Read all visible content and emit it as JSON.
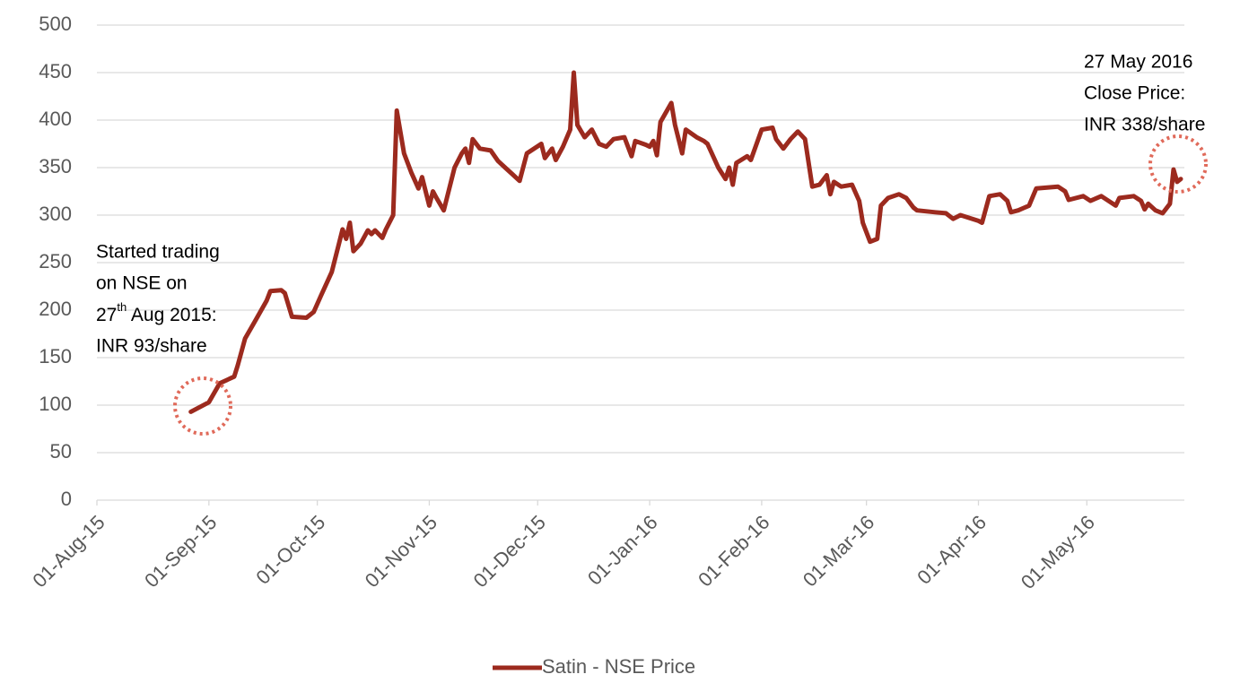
{
  "chart_data": {
    "type": "line",
    "x": [
      "2015-08-27",
      "2015-09-01",
      "2015-09-04",
      "2015-09-08",
      "2015-09-09",
      "2015-09-11",
      "2015-09-14",
      "2015-09-17",
      "2015-09-18",
      "2015-09-21",
      "2015-09-22",
      "2015-09-24",
      "2015-09-28",
      "2015-09-30",
      "2015-10-02",
      "2015-10-05",
      "2015-10-07",
      "2015-10-08",
      "2015-10-09",
      "2015-10-10",
      "2015-10-11",
      "2015-10-13",
      "2015-10-15",
      "2015-10-16",
      "2015-10-17",
      "2015-10-19",
      "2015-10-20",
      "2015-10-22",
      "2015-10-23",
      "2015-10-25",
      "2015-10-27",
      "2015-10-29",
      "2015-10-30",
      "2015-11-01",
      "2015-11-02",
      "2015-11-03",
      "2015-11-05",
      "2015-11-08",
      "2015-11-10",
      "2015-11-11",
      "2015-11-12",
      "2015-11-13",
      "2015-11-15",
      "2015-11-18",
      "2015-11-20",
      "2015-11-22",
      "2015-11-24",
      "2015-11-26",
      "2015-11-28",
      "2015-12-02",
      "2015-12-03",
      "2015-12-05",
      "2015-12-06",
      "2015-12-08",
      "2015-12-10",
      "2015-12-11",
      "2015-12-12",
      "2015-12-14",
      "2015-12-16",
      "2015-12-18",
      "2015-12-20",
      "2015-12-22",
      "2015-12-25",
      "2015-12-27",
      "2015-12-28",
      "2015-12-31",
      "2016-01-01",
      "2016-01-02",
      "2016-01-03",
      "2016-01-04",
      "2016-01-07",
      "2016-01-08",
      "2016-01-10",
      "2016-01-11",
      "2016-01-14",
      "2016-01-16",
      "2016-01-17",
      "2016-01-20",
      "2016-01-22",
      "2016-01-23",
      "2016-01-24",
      "2016-01-25",
      "2016-01-28",
      "2016-01-29",
      "2016-02-01",
      "2016-02-04",
      "2016-02-05",
      "2016-02-07",
      "2016-02-09",
      "2016-02-11",
      "2016-02-13",
      "2016-02-15",
      "2016-02-17",
      "2016-02-19",
      "2016-02-20",
      "2016-02-21",
      "2016-02-23",
      "2016-02-26",
      "2016-02-28",
      "2016-02-29",
      "2016-03-02",
      "2016-03-04",
      "2016-03-05",
      "2016-03-07",
      "2016-03-10",
      "2016-03-12",
      "2016-03-14",
      "2016-03-15",
      "2016-03-20",
      "2016-03-23",
      "2016-03-25",
      "2016-03-27",
      "2016-04-01",
      "2016-04-02",
      "2016-04-04",
      "2016-04-07",
      "2016-04-09",
      "2016-04-10",
      "2016-04-12",
      "2016-04-15",
      "2016-04-17",
      "2016-04-23",
      "2016-04-25",
      "2016-04-26",
      "2016-04-30",
      "2016-05-02",
      "2016-05-05",
      "2016-05-07",
      "2016-05-09",
      "2016-05-10",
      "2016-05-14",
      "2016-05-16",
      "2016-05-17",
      "2016-05-18",
      "2016-05-20",
      "2016-05-22",
      "2016-05-24",
      "2016-05-25",
      "2016-05-26",
      "2016-05-27"
    ],
    "series": [
      {
        "name": "Satin - NSE Price",
        "color": "#9c2a1e",
        "values": [
          93,
          103,
          123,
          130,
          142,
          170,
          190,
          210,
          220,
          221,
          218,
          193,
          192,
          198,
          215,
          240,
          270,
          285,
          275,
          292,
          262,
          270,
          284,
          280,
          284,
          276,
          285,
          300,
          410,
          365,
          345,
          328,
          340,
          310,
          325,
          318,
          305,
          350,
          365,
          370,
          355,
          380,
          370,
          368,
          357,
          350,
          343,
          336,
          365,
          375,
          360,
          370,
          358,
          372,
          390,
          450,
          395,
          382,
          390,
          375,
          372,
          380,
          382,
          362,
          378,
          374,
          372,
          378,
          363,
          398,
          418,
          395,
          365,
          390,
          382,
          378,
          375,
          350,
          338,
          350,
          332,
          355,
          362,
          358,
          390,
          392,
          380,
          370,
          380,
          388,
          380,
          330,
          332,
          342,
          322,
          335,
          330,
          332,
          315,
          292,
          272,
          275,
          310,
          318,
          322,
          318,
          308,
          305,
          303,
          302,
          296,
          300,
          294,
          292,
          320,
          322,
          315,
          303,
          305,
          310,
          328,
          330,
          325,
          316,
          320,
          315,
          320,
          315,
          310,
          318,
          320,
          315,
          306,
          312,
          305,
          302,
          312,
          348,
          335,
          338
        ]
      }
    ],
    "xlim": [
      "2015-08-01",
      "2016-05-28"
    ],
    "xticks": [
      {
        "value": "2015-08-01",
        "label": "01-Aug-15"
      },
      {
        "value": "2015-09-01",
        "label": "01-Sep-15"
      },
      {
        "value": "2015-10-01",
        "label": "01-Oct-15"
      },
      {
        "value": "2015-11-01",
        "label": "01-Nov-15"
      },
      {
        "value": "2015-12-01",
        "label": "01-Dec-15"
      },
      {
        "value": "2016-01-01",
        "label": "01-Jan-16"
      },
      {
        "value": "2016-02-01",
        "label": "01-Feb-16"
      },
      {
        "value": "2016-03-01",
        "label": "01-Mar-16"
      },
      {
        "value": "2016-04-01",
        "label": "01-Apr-16"
      },
      {
        "value": "2016-05-01",
        "label": "01-May-16"
      }
    ],
    "ylim": [
      0,
      500
    ],
    "yticks": [
      0,
      50,
      100,
      150,
      200,
      250,
      300,
      350,
      400,
      450,
      500
    ],
    "grid": true,
    "legend": "bottom",
    "annotations": [
      {
        "lines": [
          "Started trading",
          "on NSE on",
          "27",
          "th",
          " Aug 2015:",
          "INR 93/share"
        ]
      },
      {
        "lines": [
          "27 May 2016",
          "Close Price:",
          "INR 338/share"
        ]
      }
    ]
  }
}
